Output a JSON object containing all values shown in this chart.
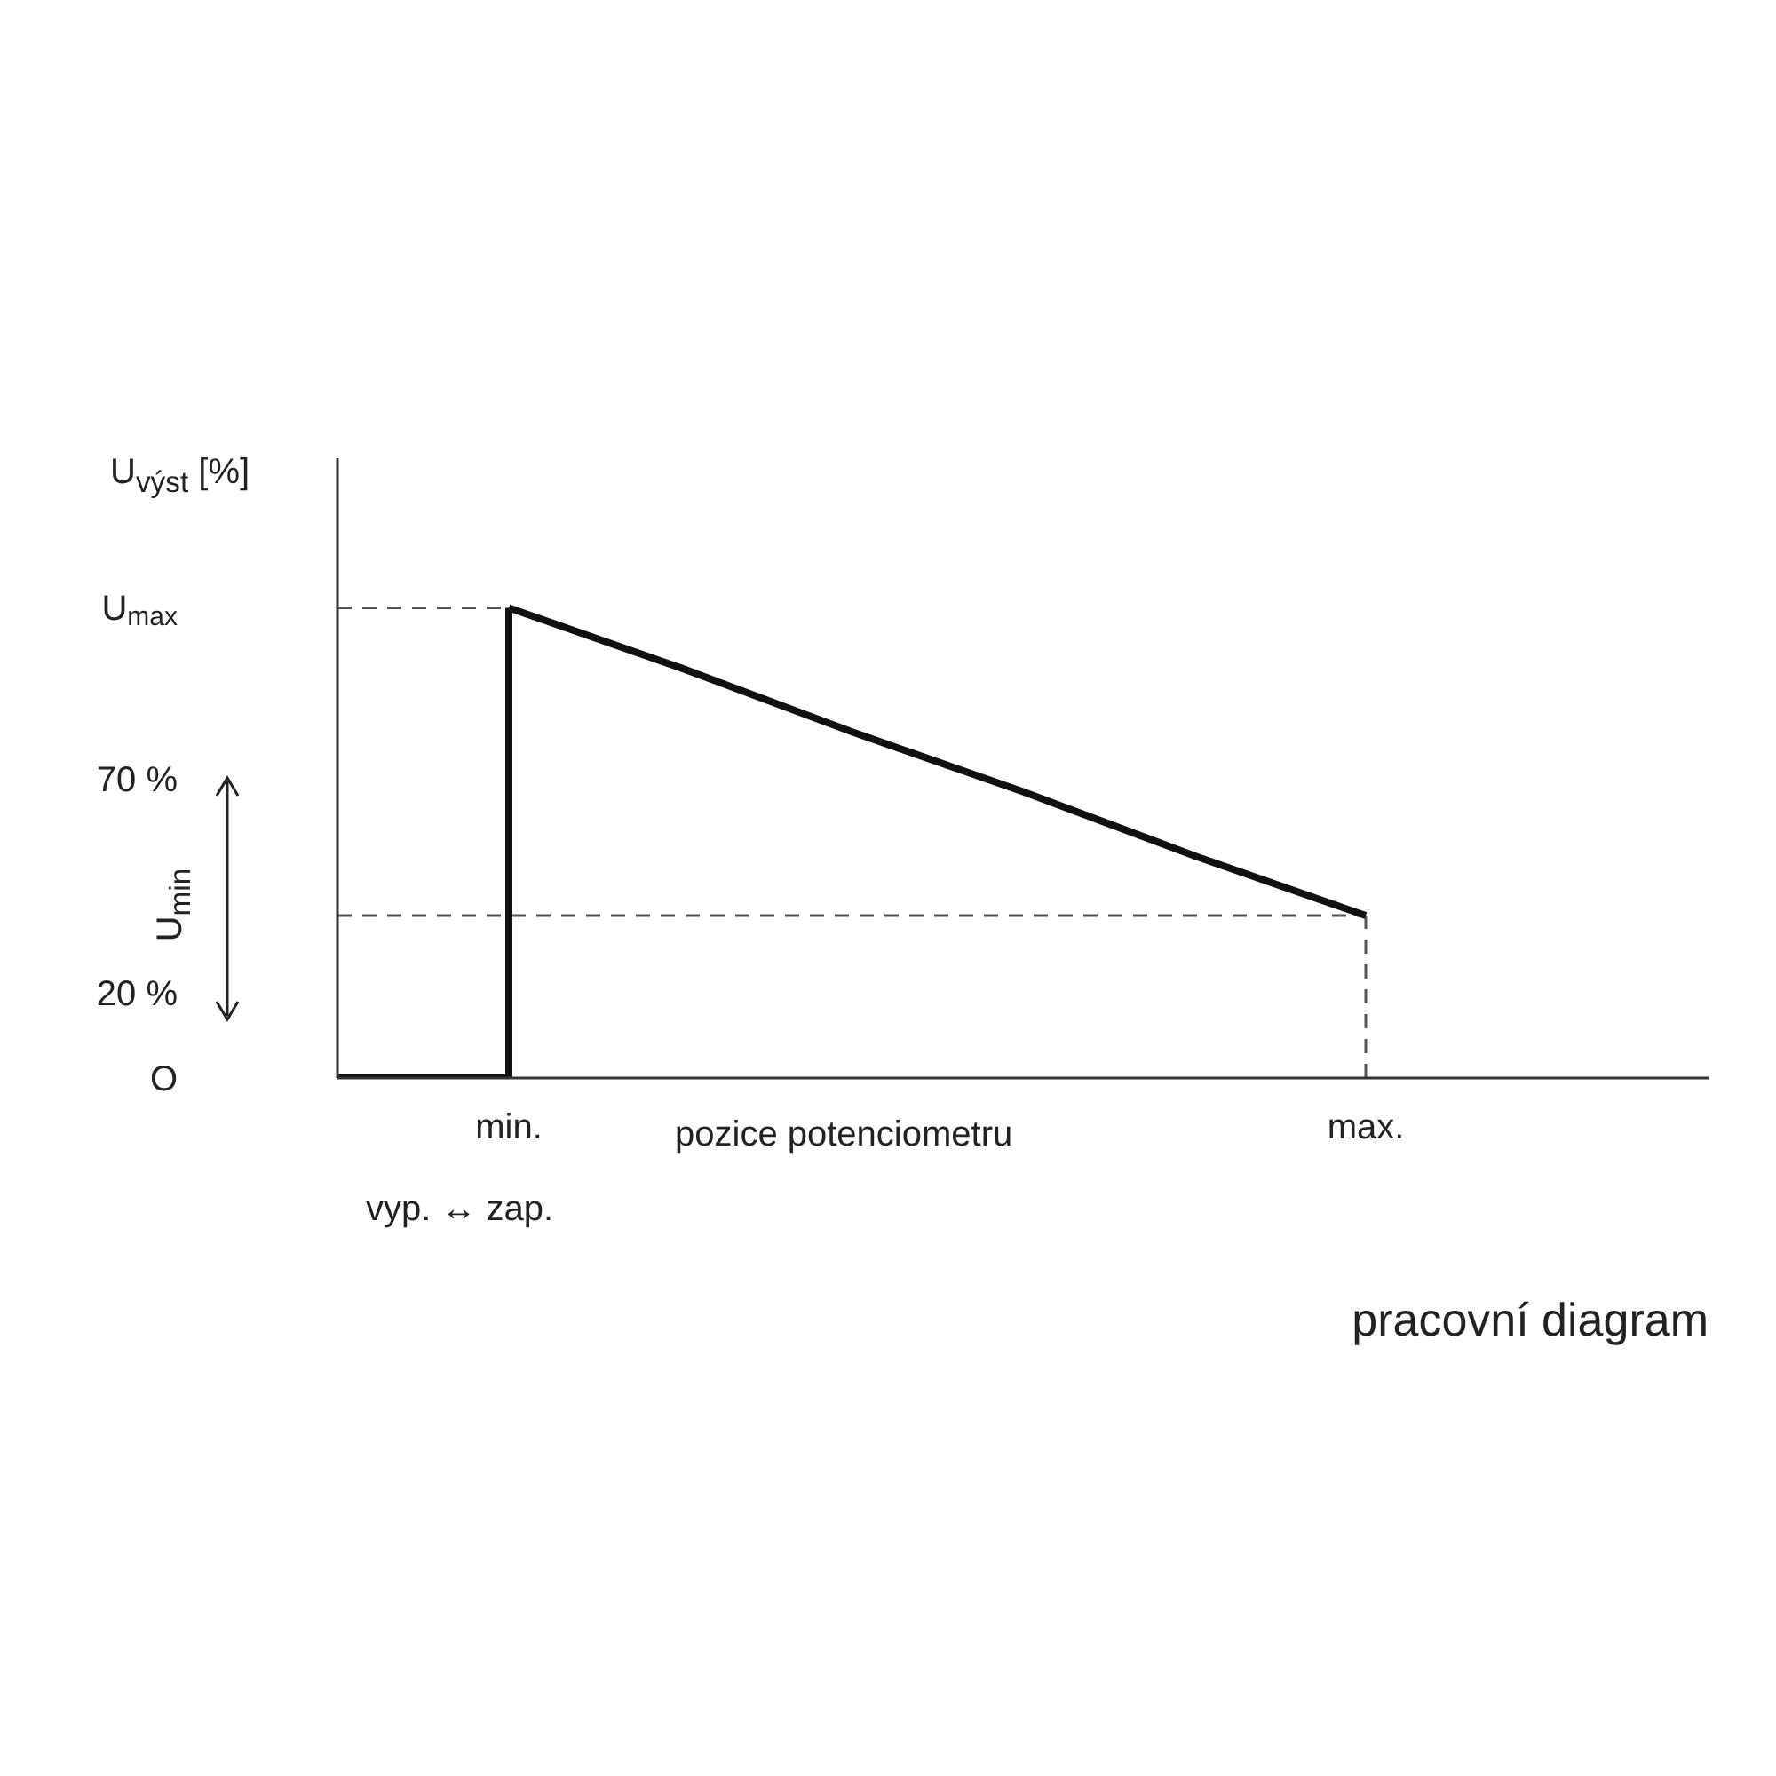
{
  "chart_data": {
    "type": "line",
    "title": "pracovní diagram",
    "xlabel": "pozice potenciometru",
    "ylabel": "U$_{výst}$ [%]",
    "categories": [
      null,
      "min.",
      null,
      null,
      null,
      null,
      "max.",
      null,
      null
    ],
    "series": [
      {
        "type": "step",
        "color": "#111111",
        "values": [
          0,
          110,
          null,
          null,
          null,
          null,
          null,
          null,
          null
        ]
      },
      {
        "color": "#111111",
        "values": [
          null,
          110,
          96,
          81,
          67,
          52,
          38,
          null,
          null
        ]
      }
    ],
    "ylim": [
      0,
      145
    ],
    "yticks": [
      {
        "value": 0,
        "label": "O"
      },
      {
        "value": 20,
        "label": "20 %"
      },
      {
        "value": 70,
        "label": "70 %"
      },
      {
        "value": 110,
        "label": "U$_{max}$"
      }
    ],
    "ref_lines": [
      {
        "axis": "y",
        "value": 110,
        "label": null,
        "color": "#555555",
        "line_style": "dashed"
      },
      {
        "axis": "y",
        "value": 38,
        "label": null,
        "color": "#555555",
        "line_style": "dashed"
      },
      {
        "axis": "x",
        "value": "max.",
        "label": null,
        "color": "#555555",
        "line_style": "dashed"
      }
    ],
    "annotations": [
      "U$_{min}$",
      "vyp. ↔ zap."
    ],
    "marker": "none",
    "line_style": "solid",
    "grid": false
  }
}
